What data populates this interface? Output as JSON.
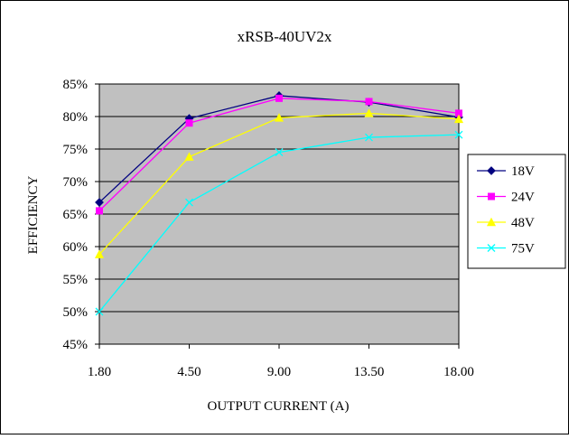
{
  "chart_data": {
    "type": "line",
    "title": "xRSB-40UV2x",
    "xlabel": "OUTPUT CURRENT (A)",
    "ylabel": "EFFICIENCY",
    "categories": [
      "1.80",
      "4.50",
      "9.00",
      "13.50",
      "18.00"
    ],
    "y_ticks": [
      "45%",
      "50%",
      "55%",
      "60%",
      "65%",
      "70%",
      "75%",
      "80%",
      "85%"
    ],
    "ylim": [
      45,
      85
    ],
    "grid": true,
    "legend_position": "right",
    "plot_background": "#c0c0c0",
    "series": [
      {
        "name": "18V",
        "color": "#000080",
        "marker": "diamond",
        "values": [
          66.8,
          79.7,
          83.2,
          82.2,
          79.9
        ]
      },
      {
        "name": "24V",
        "color": "#ff00ff",
        "marker": "square",
        "values": [
          65.5,
          79.0,
          82.8,
          82.3,
          80.5
        ]
      },
      {
        "name": "48V",
        "color": "#ffff00",
        "marker": "triangle",
        "values": [
          58.8,
          73.8,
          79.8,
          80.5,
          79.6
        ]
      },
      {
        "name": "75V",
        "color": "#00ffff",
        "marker": "x",
        "values": [
          50.0,
          66.8,
          74.5,
          76.8,
          77.2
        ]
      }
    ]
  }
}
